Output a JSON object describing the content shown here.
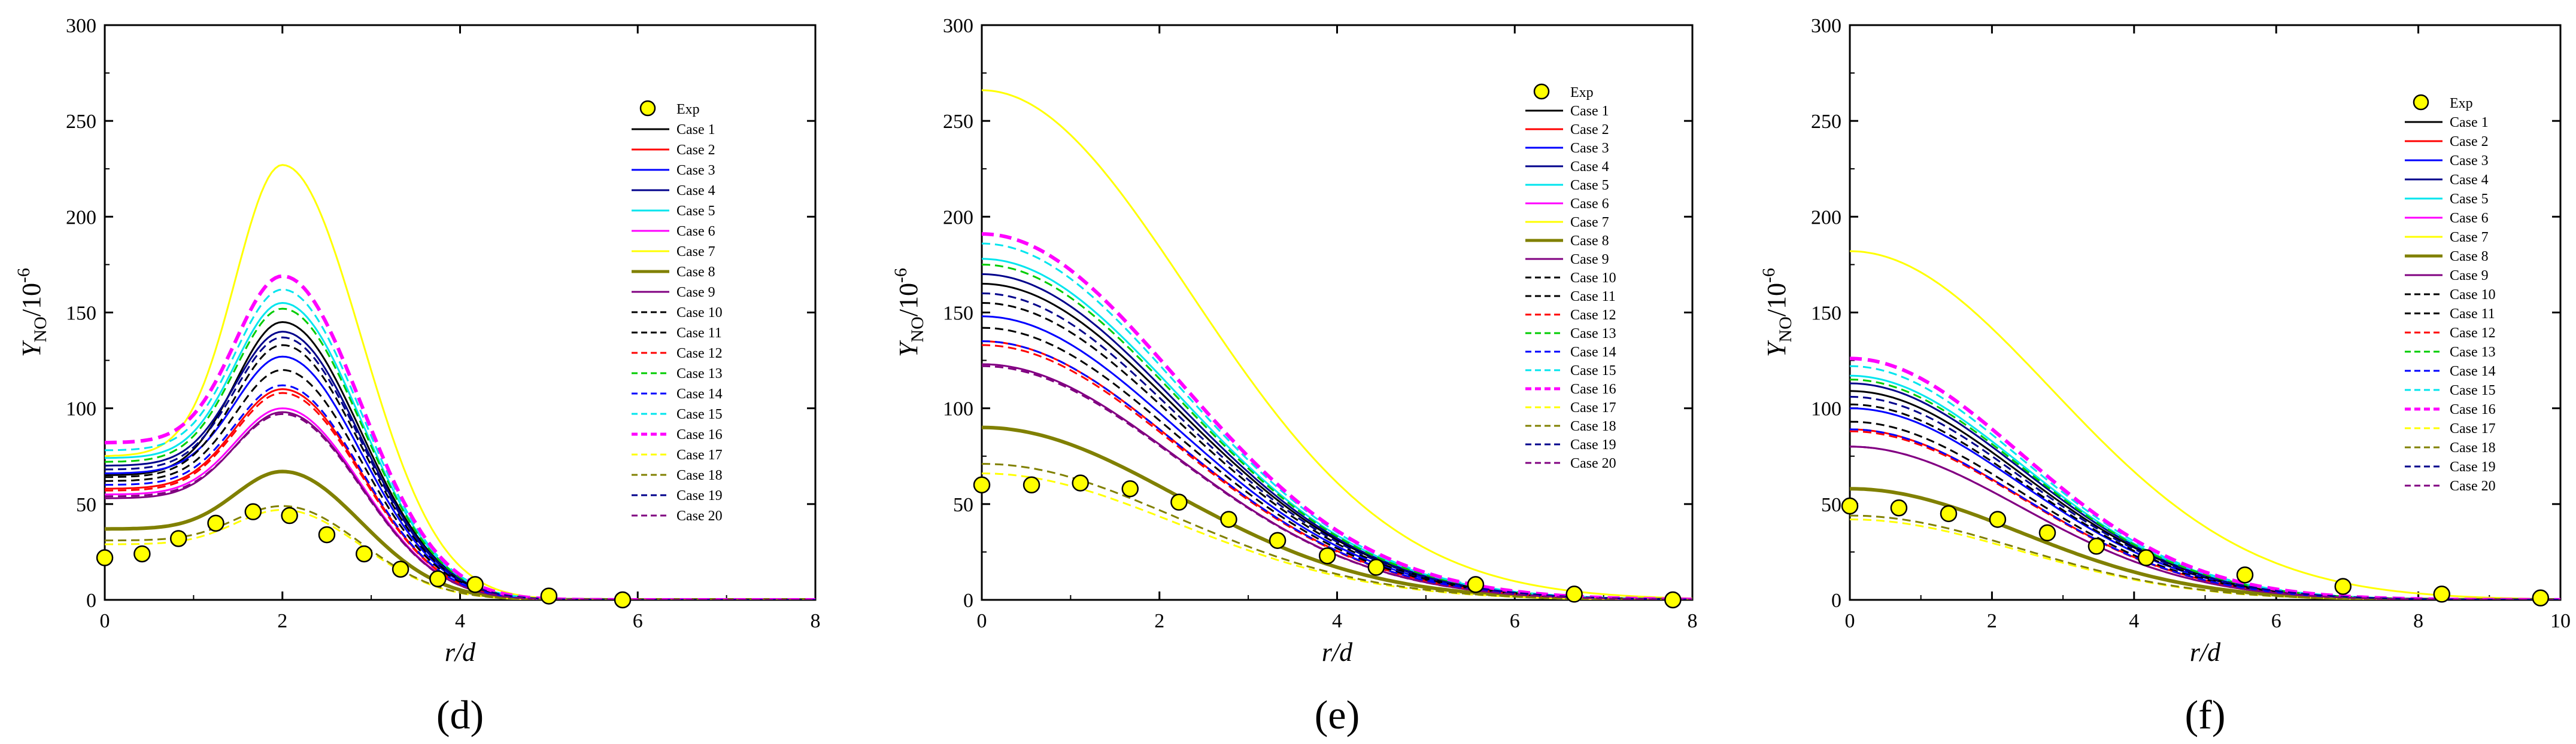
{
  "figure": {
    "y_axis_label": "Y",
    "y_axis_subscript": "NO",
    "y_axis_unit": "/10",
    "y_axis_exponent": "-6",
    "x_axis_label": "r/d",
    "legend_exp_label": "Exp"
  },
  "series_styles": [
    {
      "name": "Case 1",
      "color": "#000000",
      "dash": "solid",
      "bold": false
    },
    {
      "name": "Case 2",
      "color": "#ff0000",
      "dash": "solid",
      "bold": false
    },
    {
      "name": "Case 3",
      "color": "#0000ff",
      "dash": "solid",
      "bold": false
    },
    {
      "name": "Case 4",
      "color": "#00008b",
      "dash": "solid",
      "bold": false
    },
    {
      "name": "Case 5",
      "color": "#00e5ee",
      "dash": "solid",
      "bold": false
    },
    {
      "name": "Case 6",
      "color": "#ff00ff",
      "dash": "solid",
      "bold": false
    },
    {
      "name": "Case 7",
      "color": "#ffff00",
      "dash": "solid",
      "bold": false
    },
    {
      "name": "Case 8",
      "color": "#808000",
      "dash": "solid",
      "bold": true
    },
    {
      "name": "Case 9",
      "color": "#800080",
      "dash": "solid",
      "bold": false
    },
    {
      "name": "Case 10",
      "color": "#000000",
      "dash": "dashed",
      "bold": false
    },
    {
      "name": "Case 11",
      "color": "#000000",
      "dash": "dashed",
      "bold": false
    },
    {
      "name": "Case 12",
      "color": "#ff0000",
      "dash": "dashed",
      "bold": false
    },
    {
      "name": "Case 13",
      "color": "#00cc00",
      "dash": "dashed",
      "bold": false
    },
    {
      "name": "Case 14",
      "color": "#0000ff",
      "dash": "dashed",
      "bold": false
    },
    {
      "name": "Case 15",
      "color": "#00e5ee",
      "dash": "dashed",
      "bold": false
    },
    {
      "name": "Case 16",
      "color": "#ff00ff",
      "dash": "dashed",
      "bold": true
    },
    {
      "name": "Case 17",
      "color": "#ffff00",
      "dash": "dashed",
      "bold": false
    },
    {
      "name": "Case 18",
      "color": "#808000",
      "dash": "dashed",
      "bold": false
    },
    {
      "name": "Case 19",
      "color": "#00008b",
      "dash": "dashed",
      "bold": false
    },
    {
      "name": "Case 20",
      "color": "#800080",
      "dash": "dashed",
      "bold": false
    }
  ],
  "chart_data": [
    {
      "type": "line",
      "panel_label": "(d)",
      "panel_letter": "d",
      "legend_position": "upper-right",
      "xlabel": "r/d",
      "ylabel": "Y_NO/10^-6",
      "xlim": [
        0,
        8
      ],
      "ylim": [
        0,
        300
      ],
      "xticks": [
        0,
        2,
        4,
        6,
        8
      ],
      "yticks": [
        0,
        50,
        100,
        150,
        200,
        250,
        300
      ],
      "exp": {
        "x": [
          0,
          0.42,
          0.83,
          1.25,
          1.67,
          2.08,
          2.5,
          2.92,
          3.33,
          3.75,
          4.17,
          5.0,
          5.83
        ],
        "y": [
          22,
          24,
          32,
          40,
          46,
          44,
          34,
          24,
          16,
          11,
          8,
          2,
          0
        ]
      },
      "series": [
        {
          "name": "Case 1",
          "base": 65,
          "peak": 145,
          "w": 1.0,
          "decay": 1.1,
          "blend": 0
        },
        {
          "name": "Case 2",
          "base": 58,
          "peak": 110,
          "w": 1.0,
          "decay": 1.1,
          "blend": 0
        },
        {
          "name": "Case 3",
          "base": 66,
          "peak": 127,
          "w": 1.0,
          "decay": 1.1,
          "blend": 0
        },
        {
          "name": "Case 4",
          "base": 70,
          "peak": 140,
          "w": 1.0,
          "decay": 1.1,
          "blend": 0
        },
        {
          "name": "Case 5",
          "base": 74,
          "peak": 155,
          "w": 1.0,
          "decay": 1.1,
          "blend": 0
        },
        {
          "name": "Case 6",
          "base": 55,
          "peak": 100,
          "w": 1.0,
          "decay": 1.1,
          "blend": 0
        },
        {
          "name": "Case 7",
          "base": 75,
          "peak": 227,
          "w": 1.0,
          "decay": 1.2,
          "blend": 0
        },
        {
          "name": "Case 8",
          "base": 37,
          "peak": 67,
          "w": 1.0,
          "decay": 1.1,
          "blend": 0
        },
        {
          "name": "Case 9",
          "base": 53,
          "peak": 98,
          "w": 1.0,
          "decay": 1.1,
          "blend": 0
        },
        {
          "name": "Case 10",
          "base": 62,
          "peak": 120,
          "w": 1.0,
          "decay": 1.1,
          "blend": 0
        },
        {
          "name": "Case 11",
          "base": 64,
          "peak": 133,
          "w": 1.0,
          "decay": 1.1,
          "blend": 0
        },
        {
          "name": "Case 12",
          "base": 57,
          "peak": 108,
          "w": 1.0,
          "decay": 1.1,
          "blend": 0
        },
        {
          "name": "Case 13",
          "base": 72,
          "peak": 152,
          "w": 1.0,
          "decay": 1.1,
          "blend": 0
        },
        {
          "name": "Case 14",
          "base": 60,
          "peak": 112,
          "w": 1.0,
          "decay": 1.1,
          "blend": 0
        },
        {
          "name": "Case 15",
          "base": 78,
          "peak": 162,
          "w": 1.0,
          "decay": 1.1,
          "blend": 0
        },
        {
          "name": "Case 16",
          "base": 82,
          "peak": 169,
          "w": 1.0,
          "decay": 1.1,
          "blend": 0
        },
        {
          "name": "Case 17",
          "base": 29,
          "peak": 47,
          "w": 1.0,
          "decay": 1.1,
          "blend": 0
        },
        {
          "name": "Case 18",
          "base": 31,
          "peak": 49,
          "w": 1.0,
          "decay": 1.1,
          "blend": 0
        },
        {
          "name": "Case 19",
          "base": 68,
          "peak": 137,
          "w": 1.0,
          "decay": 1.1,
          "blend": 0
        },
        {
          "name": "Case 20",
          "base": 54,
          "peak": 97,
          "w": 1.0,
          "decay": 1.1,
          "blend": 0
        }
      ]
    },
    {
      "type": "line",
      "panel_label": "(e)",
      "panel_letter": "e",
      "legend_position": "upper-right",
      "xlabel": "r/d",
      "ylabel": "Y_NO/10^-6",
      "xlim": [
        0,
        8
      ],
      "ylim": [
        0,
        300
      ],
      "xticks": [
        0,
        2,
        4,
        6,
        8
      ],
      "yticks": [
        0,
        50,
        100,
        150,
        200,
        250,
        300
      ],
      "exp": {
        "x": [
          0,
          0.56,
          1.11,
          1.67,
          2.22,
          2.78,
          3.33,
          3.89,
          4.44,
          5.56,
          6.67,
          7.78
        ],
        "y": [
          60,
          60,
          61,
          58,
          51,
          42,
          31,
          23,
          17,
          8,
          3,
          0
        ]
      },
      "series": [
        {
          "name": "Case 1",
          "y0": 165,
          "sigma": 3.1
        },
        {
          "name": "Case 2",
          "y0": 135,
          "sigma": 3.1
        },
        {
          "name": "Case 3",
          "y0": 148,
          "sigma": 3.1
        },
        {
          "name": "Case 4",
          "y0": 170,
          "sigma": 3.1
        },
        {
          "name": "Case 5",
          "y0": 178,
          "sigma": 3.1
        },
        {
          "name": "Case 6",
          "y0": 123,
          "sigma": 3.1
        },
        {
          "name": "Case 7",
          "y0": 266,
          "sigma": 3.3
        },
        {
          "name": "Case 8",
          "y0": 90,
          "sigma": 3.1
        },
        {
          "name": "Case 9",
          "y0": 123,
          "sigma": 3.1
        },
        {
          "name": "Case 10",
          "y0": 142,
          "sigma": 3.1
        },
        {
          "name": "Case 11",
          "y0": 155,
          "sigma": 3.1
        },
        {
          "name": "Case 12",
          "y0": 133,
          "sigma": 3.1
        },
        {
          "name": "Case 13",
          "y0": 175,
          "sigma": 3.1
        },
        {
          "name": "Case 14",
          "y0": 135,
          "sigma": 3.1
        },
        {
          "name": "Case 15",
          "y0": 186,
          "sigma": 3.1
        },
        {
          "name": "Case 16",
          "y0": 191,
          "sigma": 3.1
        },
        {
          "name": "Case 17",
          "y0": 66,
          "sigma": 3.1
        },
        {
          "name": "Case 18",
          "y0": 71,
          "sigma": 3.1
        },
        {
          "name": "Case 19",
          "y0": 160,
          "sigma": 3.1
        },
        {
          "name": "Case 20",
          "y0": 122,
          "sigma": 3.1
        }
      ]
    },
    {
      "type": "line",
      "panel_label": "(f)",
      "panel_letter": "f",
      "legend_position": "upper-right",
      "xlabel": "r/d",
      "ylabel": "Y_NO/10^-6",
      "xlim": [
        0,
        10
      ],
      "ylim": [
        0,
        300
      ],
      "xticks": [
        0,
        2,
        4,
        6,
        8,
        10
      ],
      "yticks": [
        0,
        50,
        100,
        150,
        200,
        250,
        300
      ],
      "exp": {
        "x": [
          0,
          0.69,
          1.39,
          2.08,
          2.78,
          3.47,
          4.17,
          5.56,
          6.94,
          8.33,
          9.72
        ],
        "y": [
          49,
          48,
          45,
          42,
          35,
          28,
          22,
          13,
          7,
          3,
          1
        ]
      },
      "series": [
        {
          "name": "Case 1",
          "y0": 109,
          "sigma": 3.4
        },
        {
          "name": "Case 2",
          "y0": 89,
          "sigma": 3.4
        },
        {
          "name": "Case 3",
          "y0": 100,
          "sigma": 3.4
        },
        {
          "name": "Case 4",
          "y0": 113,
          "sigma": 3.4
        },
        {
          "name": "Case 5",
          "y0": 117,
          "sigma": 3.4
        },
        {
          "name": "Case 6",
          "y0": 80,
          "sigma": 3.4
        },
        {
          "name": "Case 7",
          "y0": 182,
          "sigma": 4.0
        },
        {
          "name": "Case 8",
          "y0": 58,
          "sigma": 3.4
        },
        {
          "name": "Case 9",
          "y0": 80,
          "sigma": 3.4
        },
        {
          "name": "Case 10",
          "y0": 93,
          "sigma": 3.4
        },
        {
          "name": "Case 11",
          "y0": 102,
          "sigma": 3.4
        },
        {
          "name": "Case 12",
          "y0": 88,
          "sigma": 3.4
        },
        {
          "name": "Case 13",
          "y0": 115,
          "sigma": 3.4
        },
        {
          "name": "Case 14",
          "y0": 89,
          "sigma": 3.4
        },
        {
          "name": "Case 15",
          "y0": 122,
          "sigma": 3.4
        },
        {
          "name": "Case 16",
          "y0": 126,
          "sigma": 3.4
        },
        {
          "name": "Case 17",
          "y0": 42,
          "sigma": 3.4
        },
        {
          "name": "Case 18",
          "y0": 44,
          "sigma": 3.4
        },
        {
          "name": "Case 19",
          "y0": 106,
          "sigma": 3.4
        },
        {
          "name": "Case 20",
          "y0": 80,
          "sigma": 3.4
        }
      ]
    }
  ]
}
